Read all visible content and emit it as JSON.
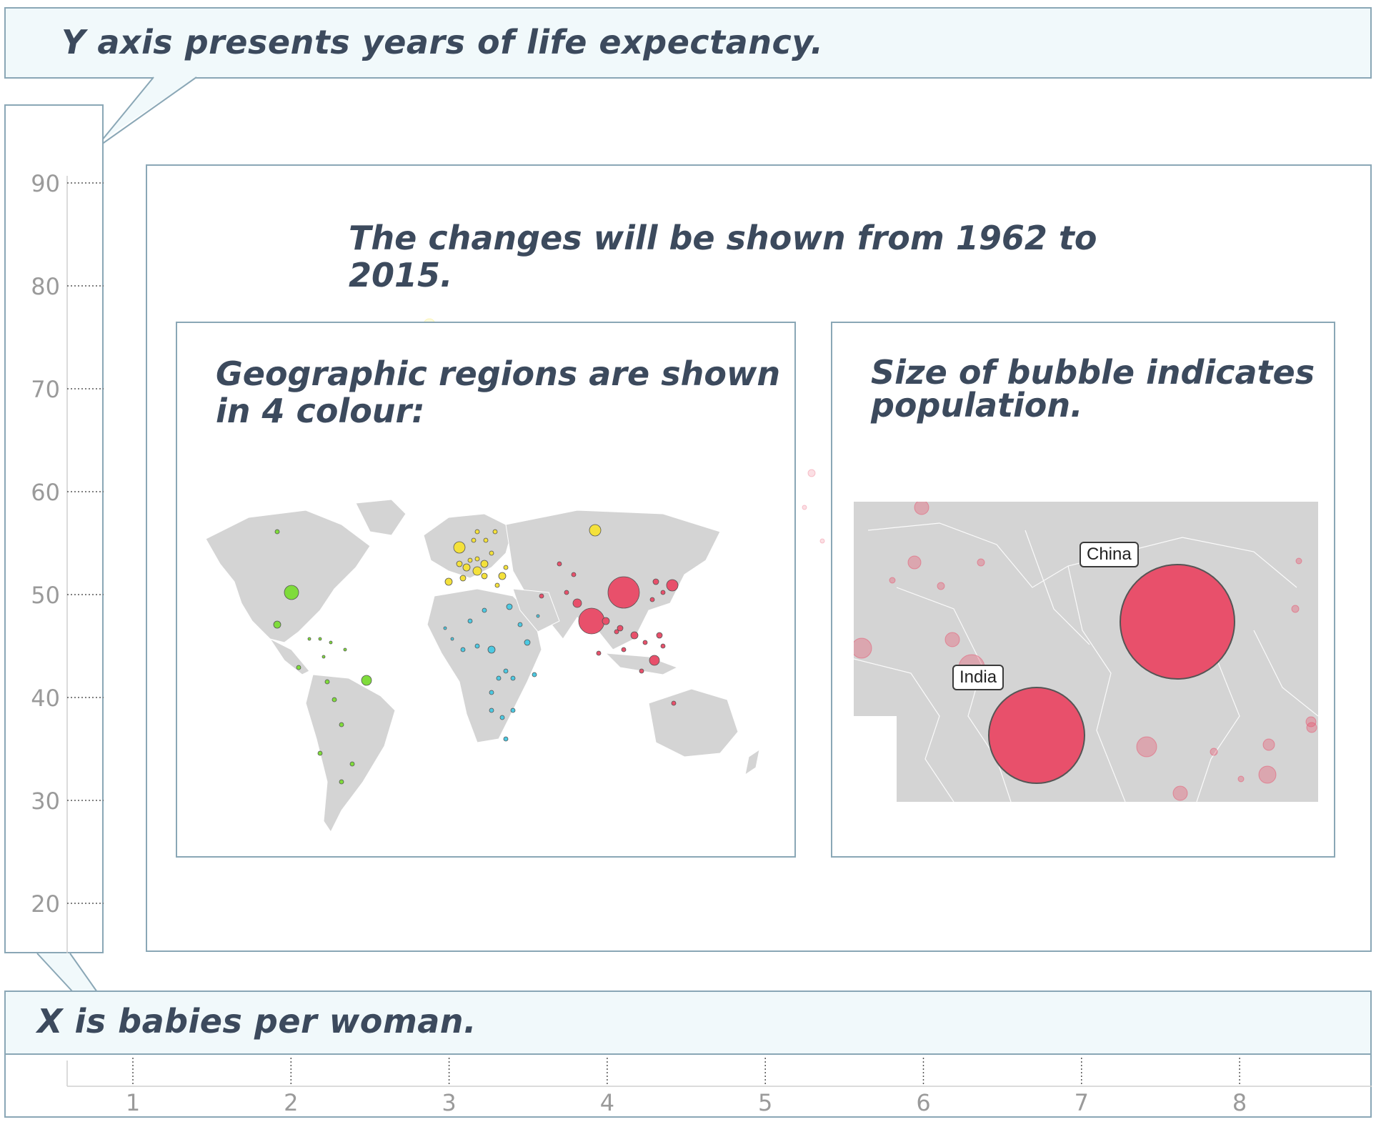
{
  "callouts": {
    "y_axis": "Y axis presents years of life expectancy.",
    "x_axis": "X is babies per woman.",
    "time_range": "The changes will be shown from 1962 to 2015.",
    "regions": "Geographic regions are shown in 4 colour:",
    "regions_line1": "Geographic regions are shown",
    "regions_line2": "in 4 colour:",
    "bubble_size_line1": "Size of bubble indicates",
    "bubble_size_line2": "population."
  },
  "colors": {
    "panel_border": "#8aa7b6",
    "callout_bg": "#f1f9fb",
    "text": "#3c4a5d",
    "region_americas": "#7fdc3b",
    "region_europe": "#f4e13b",
    "region_africa": "#4cc9e2",
    "region_asia": "#e8506b",
    "land": "#d4d4d4"
  },
  "zoom_map": {
    "labels": [
      "China",
      "India"
    ]
  },
  "chart_data": {
    "type": "scatter",
    "title": "",
    "xlabel": "",
    "ylabel": "",
    "x_ticks": [
      1,
      2,
      3,
      4,
      5,
      6,
      7,
      8
    ],
    "y_ticks": [
      20,
      30,
      40,
      50,
      60,
      70,
      80,
      90
    ],
    "xlim": [
      0.5,
      9.2
    ],
    "ylim": [
      15,
      92
    ],
    "grid": false,
    "x_tick_style": "dotted",
    "y_tick_style": "dotted"
  }
}
